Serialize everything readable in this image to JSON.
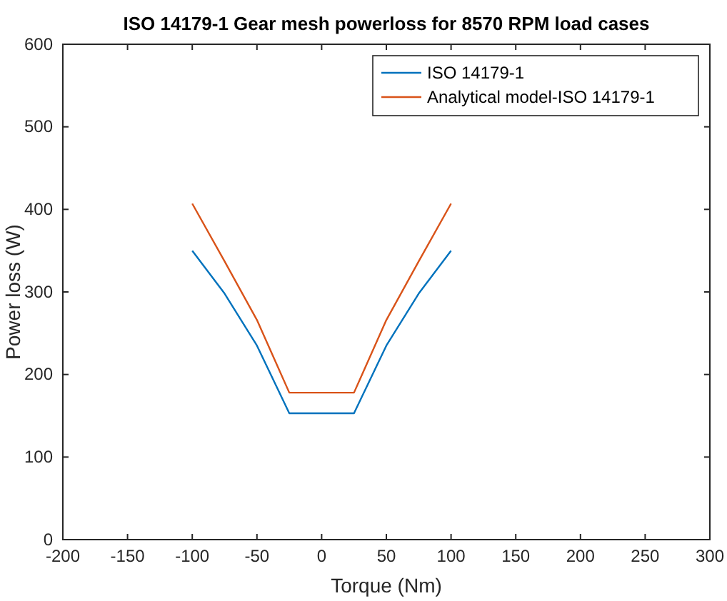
{
  "chart_data": {
    "type": "line",
    "title": "ISO 14179-1 Gear mesh powerloss for 8570 RPM load cases",
    "xlabel": "Torque (Nm)",
    "ylabel": "Power loss (W)",
    "x": [
      -100,
      -75,
      -50,
      -25,
      25,
      50,
      75,
      100
    ],
    "series": [
      {
        "name": "ISO 14179-1",
        "color": "#0072bd",
        "values": [
          350,
          298,
          235,
          153,
          153,
          235,
          298,
          350
        ]
      },
      {
        "name": "Analytical model-ISO 14179-1",
        "color": "#d95319",
        "values": [
          407,
          337,
          266,
          178,
          178,
          266,
          337,
          407
        ]
      }
    ],
    "xlim": [
      -200,
      300
    ],
    "xticks": [
      -200,
      -150,
      -100,
      -50,
      0,
      50,
      100,
      150,
      200,
      250,
      300
    ],
    "ylim": [
      0,
      600
    ],
    "yticks": [
      0,
      100,
      200,
      300,
      400,
      500,
      600
    ],
    "grid": false,
    "legend": "top right",
    "marker": "none",
    "line_style": "solid"
  }
}
